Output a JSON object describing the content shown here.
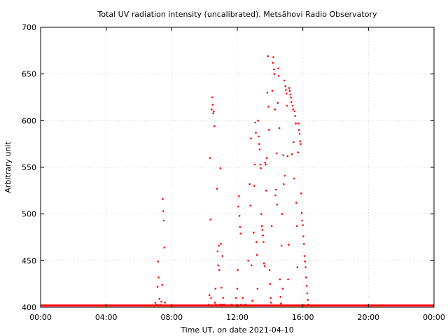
{
  "chart_data": {
    "type": "scatter",
    "title": "Total UV radiation intensity (uncalibrated). Metsähovi Radio Observatory",
    "xlabel": "Time UT, on date 2021-04-10",
    "ylabel": "Arbitrary unit",
    "xlim": [
      "00:00",
      "24:00"
    ],
    "ylim": [
      400,
      700
    ],
    "grid": true,
    "x_ticks": [
      "00:00",
      "04:00",
      "08:00",
      "12:00",
      "16:00",
      "20:00",
      "00:00"
    ],
    "y_ticks": [
      400,
      450,
      500,
      550,
      600,
      650,
      700
    ],
    "colors": {
      "points": "#ff0000",
      "grid": "#cccccc",
      "axes": "#000000"
    },
    "baseline": {
      "y": 402,
      "x_start": "00:00",
      "x_end": "24:00"
    },
    "series": [
      {
        "points": [
          [
            "07:00",
            405
          ],
          [
            "07:05",
            403
          ],
          [
            "07:08",
            422
          ],
          [
            "07:10",
            449
          ],
          [
            "07:12",
            432
          ],
          [
            "07:15",
            409
          ],
          [
            "07:18",
            403
          ],
          [
            "07:22",
            406
          ],
          [
            "07:25",
            424
          ],
          [
            "07:27",
            516
          ],
          [
            "07:29",
            503
          ],
          [
            "07:31",
            493
          ],
          [
            "07:33",
            464
          ],
          [
            "07:35",
            405
          ],
          [
            "07:38",
            402
          ],
          [
            "10:15",
            403
          ],
          [
            "10:18",
            413
          ],
          [
            "10:20",
            560
          ],
          [
            "10:22",
            494
          ],
          [
            "10:24",
            410
          ],
          [
            "10:26",
            612
          ],
          [
            "10:28",
            625
          ],
          [
            "10:30",
            617
          ],
          [
            "10:32",
            608
          ],
          [
            "10:34",
            610
          ],
          [
            "10:36",
            594
          ],
          [
            "10:38",
            405
          ],
          [
            "10:40",
            420
          ],
          [
            "10:42",
            403
          ],
          [
            "10:44",
            402
          ],
          [
            "10:46",
            527
          ],
          [
            "10:48",
            460
          ],
          [
            "10:50",
            445
          ],
          [
            "10:52",
            466
          ],
          [
            "10:54",
            440
          ],
          [
            "10:56",
            403
          ],
          [
            "10:58",
            549
          ],
          [
            "11:00",
            468
          ],
          [
            "11:02",
            421
          ],
          [
            "11:04",
            403
          ],
          [
            "11:06",
            455
          ],
          [
            "11:08",
            410
          ],
          [
            "11:12",
            403
          ],
          [
            "11:40",
            403
          ],
          [
            "11:55",
            410
          ],
          [
            "12:00",
            420
          ],
          [
            "12:02",
            440
          ],
          [
            "12:04",
            508
          ],
          [
            "12:06",
            519
          ],
          [
            "12:08",
            498
          ],
          [
            "12:10",
            486
          ],
          [
            "12:12",
            479
          ],
          [
            "12:14",
            403
          ],
          [
            "12:20",
            410
          ],
          [
            "12:30",
            403
          ],
          [
            "12:40",
            450
          ],
          [
            "12:45",
            532
          ],
          [
            "12:48",
            509
          ],
          [
            "12:50",
            581
          ],
          [
            "12:52",
            445
          ],
          [
            "12:55",
            407
          ],
          [
            "13:00",
            480
          ],
          [
            "13:02",
            530
          ],
          [
            "13:04",
            553
          ],
          [
            "13:06",
            598
          ],
          [
            "13:08",
            587
          ],
          [
            "13:10",
            470
          ],
          [
            "13:12",
            456
          ],
          [
            "13:14",
            420
          ],
          [
            "13:16",
            600
          ],
          [
            "13:18",
            583
          ],
          [
            "13:20",
            575
          ],
          [
            "13:22",
            569
          ],
          [
            "13:24",
            553
          ],
          [
            "13:26",
            549
          ],
          [
            "13:28",
            500
          ],
          [
            "13:30",
            487
          ],
          [
            "13:32",
            483
          ],
          [
            "13:34",
            477
          ],
          [
            "13:36",
            470
          ],
          [
            "13:38",
            447
          ],
          [
            "13:40",
            444
          ],
          [
            "13:42",
            555
          ],
          [
            "13:44",
            553
          ],
          [
            "13:46",
            525
          ],
          [
            "13:48",
            560
          ],
          [
            "13:50",
            630
          ],
          [
            "13:52",
            669
          ],
          [
            "13:54",
            615
          ],
          [
            "13:56",
            590
          ],
          [
            "13:58",
            440
          ],
          [
            "14:00",
            425
          ],
          [
            "14:02",
            410
          ],
          [
            "14:04",
            405
          ],
          [
            "14:06",
            487
          ],
          [
            "14:08",
            632
          ],
          [
            "14:10",
            662
          ],
          [
            "14:12",
            668
          ],
          [
            "14:14",
            655
          ],
          [
            "14:16",
            650
          ],
          [
            "14:18",
            612
          ],
          [
            "14:20",
            520
          ],
          [
            "14:22",
            526
          ],
          [
            "14:24",
            565
          ],
          [
            "14:26",
            510
          ],
          [
            "14:28",
            619
          ],
          [
            "14:30",
            656
          ],
          [
            "14:32",
            648
          ],
          [
            "14:34",
            592
          ],
          [
            "14:36",
            430
          ],
          [
            "14:38",
            411
          ],
          [
            "14:40",
            404
          ],
          [
            "14:42",
            466
          ],
          [
            "14:44",
            500
          ],
          [
            "14:46",
            420
          ],
          [
            "14:48",
            563
          ],
          [
            "14:50",
            532
          ],
          [
            "14:52",
            643
          ],
          [
            "14:54",
            541
          ],
          [
            "14:56",
            637
          ],
          [
            "14:58",
            633
          ],
          [
            "15:00",
            629
          ],
          [
            "15:02",
            616
          ],
          [
            "15:04",
            562
          ],
          [
            "15:06",
            430
          ],
          [
            "15:08",
            467
          ],
          [
            "15:10",
            635
          ],
          [
            "15:12",
            632
          ],
          [
            "15:14",
            628
          ],
          [
            "15:16",
            625
          ],
          [
            "15:18",
            620
          ],
          [
            "15:20",
            564
          ],
          [
            "15:22",
            616
          ],
          [
            "15:24",
            612
          ],
          [
            "15:26",
            577
          ],
          [
            "15:28",
            538
          ],
          [
            "15:30",
            610
          ],
          [
            "15:32",
            605
          ],
          [
            "15:34",
            597
          ],
          [
            "15:36",
            512
          ],
          [
            "15:38",
            487
          ],
          [
            "15:40",
            443
          ],
          [
            "15:42",
            566
          ],
          [
            "15:44",
            597
          ],
          [
            "15:46",
            590
          ],
          [
            "15:48",
            586
          ],
          [
            "15:50",
            578
          ],
          [
            "15:52",
            575
          ],
          [
            "15:54",
            522
          ],
          [
            "15:56",
            501
          ],
          [
            "15:58",
            493
          ],
          [
            "16:00",
            488
          ],
          [
            "16:02",
            476
          ],
          [
            "16:04",
            468
          ],
          [
            "16:06",
            455
          ],
          [
            "16:08",
            449
          ],
          [
            "16:10",
            443
          ],
          [
            "16:12",
            432
          ],
          [
            "16:14",
            423
          ],
          [
            "16:16",
            415
          ],
          [
            "16:18",
            408
          ],
          [
            "16:20",
            403
          ]
        ]
      }
    ]
  }
}
